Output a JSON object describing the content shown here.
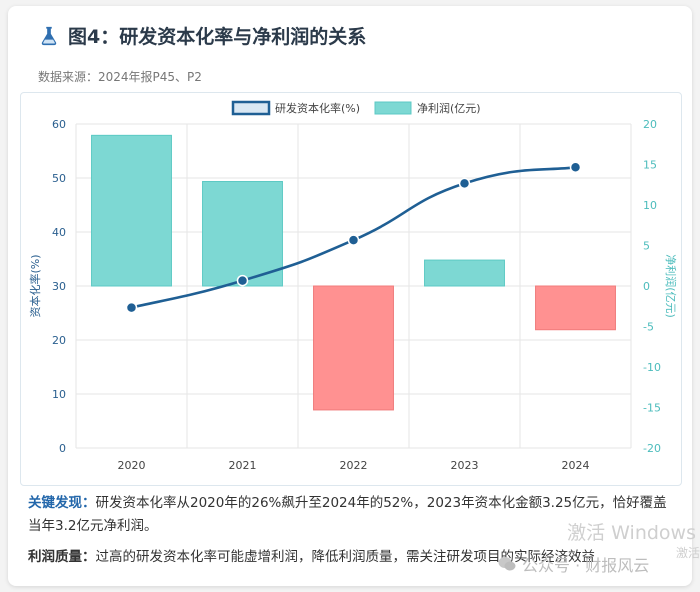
{
  "header": {
    "title": "图4：研发资本化率与净利润的关系",
    "source": "数据来源：2024年报P45、P2"
  },
  "chart_data": {
    "type": "bar+line",
    "categories": [
      "2020",
      "2021",
      "2022",
      "2023",
      "2024"
    ],
    "series": [
      {
        "name": "研发资本化率(%)",
        "type": "line",
        "axis": "left",
        "values": [
          26,
          31,
          38.5,
          49,
          52
        ],
        "color": "#1f5f94"
      },
      {
        "name": "净利润(亿元)",
        "type": "bar",
        "axis": "right",
        "values": [
          18.6,
          12.9,
          -15.3,
          3.2,
          -5.4
        ],
        "color_positive": "#7dd8d3",
        "color_negative": "#ff9191"
      }
    ],
    "left_axis": {
      "label": "资本化率(%)",
      "min": 0,
      "max": 60,
      "ticks": [
        "0",
        "10",
        "20",
        "30",
        "40",
        "50",
        "60"
      ]
    },
    "right_axis": {
      "label": "净利润(亿元)",
      "min": -20,
      "max": 20,
      "ticks": [
        "-20",
        "-15",
        "-10",
        "-5",
        "0",
        "5",
        "10",
        "15",
        "20"
      ]
    },
    "legend_position": "top",
    "grid": true
  },
  "findings": [
    {
      "label": "关键发现：",
      "text": "研发资本化率从2020年的26%飙升至2024年的52%，2023年资本化金额3.25亿元，恰好覆盖当年3.2亿元净利润。"
    },
    {
      "label": "利润质量：",
      "text": "过高的研发资本化率可能虚增利润，降低利润质量，需关注研发项目的实际经济效益"
    }
  ],
  "watermark": {
    "activate": "激活 Windows",
    "activate_sub": "激活",
    "account": "公众号 · 财报风云"
  }
}
